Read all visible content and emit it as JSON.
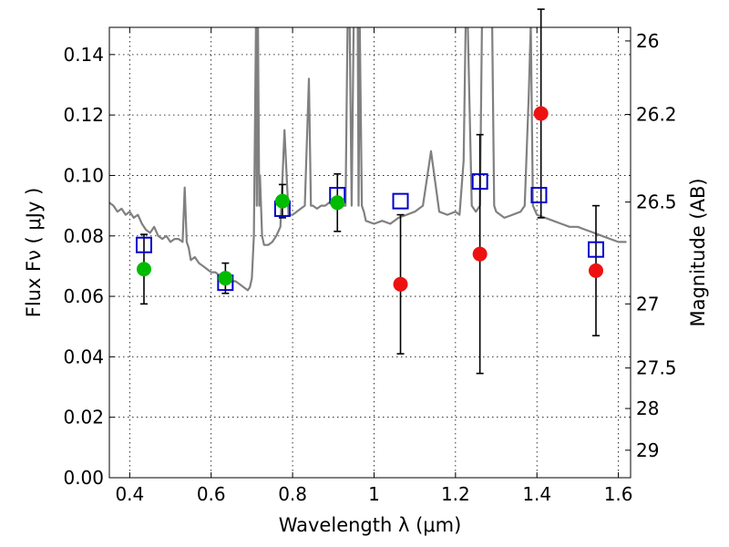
{
  "chart_data": {
    "type": "scatter",
    "xlabel": "Wavelength  λ (μm)",
    "ylabel": "Flux  Fν  ( μJy )",
    "y2label": "Magnitude (AB)",
    "xlim": [
      0.35,
      1.63
    ],
    "ylim": [
      0.0,
      0.149
    ],
    "grid": true,
    "x_ticks": [
      0.4,
      0.6,
      0.8,
      1.0,
      1.2,
      1.4,
      1.6
    ],
    "x_tick_labels": [
      "0.4",
      "0.6",
      "0.8",
      "1",
      "1.2",
      "1.4",
      "1.6"
    ],
    "y_ticks": [
      0.0,
      0.02,
      0.04,
      0.06,
      0.08,
      0.1,
      0.12,
      0.14
    ],
    "y_tick_labels": [
      "0.00",
      "0.02",
      "0.04",
      "0.06",
      "0.08",
      "0.10",
      "0.12",
      "0.14"
    ],
    "y2_ticks": [
      {
        "label": "26",
        "flux": 0.1445
      },
      {
        "label": "26.2",
        "flux": 0.1202
      },
      {
        "label": "26.5",
        "flux": 0.0912
      },
      {
        "label": "27",
        "flux": 0.0575
      },
      {
        "label": "27.5",
        "flux": 0.0363
      },
      {
        "label": "28",
        "flux": 0.0229
      },
      {
        "label": "29",
        "flux": 0.0091
      }
    ],
    "series": [
      {
        "marker": "circle",
        "color": "#00bb00",
        "points": [
          {
            "x": 0.435,
            "y": 0.069,
            "err": 0.0115
          },
          {
            "x": 0.635,
            "y": 0.066,
            "err": 0.005
          },
          {
            "x": 0.775,
            "y": 0.0915,
            "err": 0.0055
          },
          {
            "x": 0.91,
            "y": 0.091,
            "err": 0.0095
          }
        ]
      },
      {
        "marker": "circle",
        "color": "#ee1111",
        "points": [
          {
            "x": 1.065,
            "y": 0.064,
            "err": 0.023
          },
          {
            "x": 1.26,
            "y": 0.074,
            "err": 0.0395
          },
          {
            "x": 1.41,
            "y": 0.1205,
            "err": 0.0345
          },
          {
            "x": 1.545,
            "y": 0.0685,
            "err": 0.0215
          }
        ]
      },
      {
        "marker": "open-square",
        "color": "#0000cc",
        "points": [
          {
            "x": 0.435,
            "y": 0.077
          },
          {
            "x": 0.635,
            "y": 0.0645
          },
          {
            "x": 0.775,
            "y": 0.089
          },
          {
            "x": 0.91,
            "y": 0.0935
          },
          {
            "x": 1.065,
            "y": 0.0915
          },
          {
            "x": 1.26,
            "y": 0.098
          },
          {
            "x": 1.405,
            "y": 0.0935
          },
          {
            "x": 1.545,
            "y": 0.0755
          }
        ]
      }
    ],
    "model_spectrum": {
      "color": "#808080",
      "x": [
        0.35,
        0.36,
        0.37,
        0.38,
        0.39,
        0.4,
        0.41,
        0.42,
        0.43,
        0.44,
        0.45,
        0.46,
        0.47,
        0.48,
        0.49,
        0.5,
        0.51,
        0.52,
        0.53,
        0.535,
        0.54,
        0.545,
        0.55,
        0.56,
        0.57,
        0.58,
        0.59,
        0.6,
        0.61,
        0.62,
        0.63,
        0.64,
        0.65,
        0.66,
        0.67,
        0.68,
        0.69,
        0.695,
        0.7,
        0.705,
        0.71,
        0.712,
        0.715,
        0.718,
        0.72,
        0.725,
        0.73,
        0.74,
        0.75,
        0.76,
        0.77,
        0.78,
        0.79,
        0.8,
        0.81,
        0.82,
        0.83,
        0.84,
        0.845,
        0.85,
        0.86,
        0.87,
        0.88,
        0.89,
        0.9,
        0.91,
        0.92,
        0.93,
        0.935,
        0.94,
        0.945,
        0.95,
        0.955,
        0.96,
        0.962,
        0.965,
        0.97,
        0.975,
        0.98,
        1.0,
        1.02,
        1.04,
        1.06,
        1.08,
        1.1,
        1.12,
        1.14,
        1.16,
        1.18,
        1.2,
        1.21,
        1.22,
        1.225,
        1.23,
        1.24,
        1.25,
        1.26,
        1.265,
        1.27,
        1.275,
        1.28,
        1.285,
        1.29,
        1.295,
        1.3,
        1.32,
        1.34,
        1.36,
        1.37,
        1.38,
        1.385,
        1.39,
        1.4,
        1.42,
        1.44,
        1.46,
        1.48,
        1.5,
        1.52,
        1.54,
        1.56,
        1.58,
        1.6,
        1.62
      ],
      "y": [
        0.091,
        0.09,
        0.088,
        0.089,
        0.087,
        0.088,
        0.086,
        0.087,
        0.084,
        0.082,
        0.081,
        0.083,
        0.08,
        0.079,
        0.08,
        0.078,
        0.079,
        0.079,
        0.078,
        0.096,
        0.078,
        0.076,
        0.072,
        0.073,
        0.071,
        0.07,
        0.069,
        0.068,
        0.068,
        0.067,
        0.066,
        0.066,
        0.065,
        0.065,
        0.064,
        0.063,
        0.062,
        0.063,
        0.066,
        0.08,
        0.15,
        0.09,
        0.15,
        0.09,
        0.1,
        0.08,
        0.077,
        0.077,
        0.078,
        0.08,
        0.083,
        0.115,
        0.087,
        0.087,
        0.088,
        0.089,
        0.09,
        0.132,
        0.09,
        0.09,
        0.089,
        0.09,
        0.09,
        0.091,
        0.09,
        0.092,
        0.09,
        0.09,
        0.15,
        0.15,
        0.09,
        0.15,
        0.15,
        0.15,
        0.09,
        0.15,
        0.09,
        0.088,
        0.085,
        0.084,
        0.085,
        0.084,
        0.086,
        0.087,
        0.088,
        0.09,
        0.108,
        0.088,
        0.087,
        0.088,
        0.087,
        0.105,
        0.15,
        0.15,
        0.09,
        0.088,
        0.09,
        0.15,
        0.15,
        0.15,
        0.15,
        0.15,
        0.15,
        0.09,
        0.088,
        0.086,
        0.087,
        0.088,
        0.09,
        0.127,
        0.15,
        0.09,
        0.087,
        0.086,
        0.085,
        0.084,
        0.083,
        0.083,
        0.082,
        0.081,
        0.08,
        0.079,
        0.078,
        0.078
      ]
    }
  }
}
